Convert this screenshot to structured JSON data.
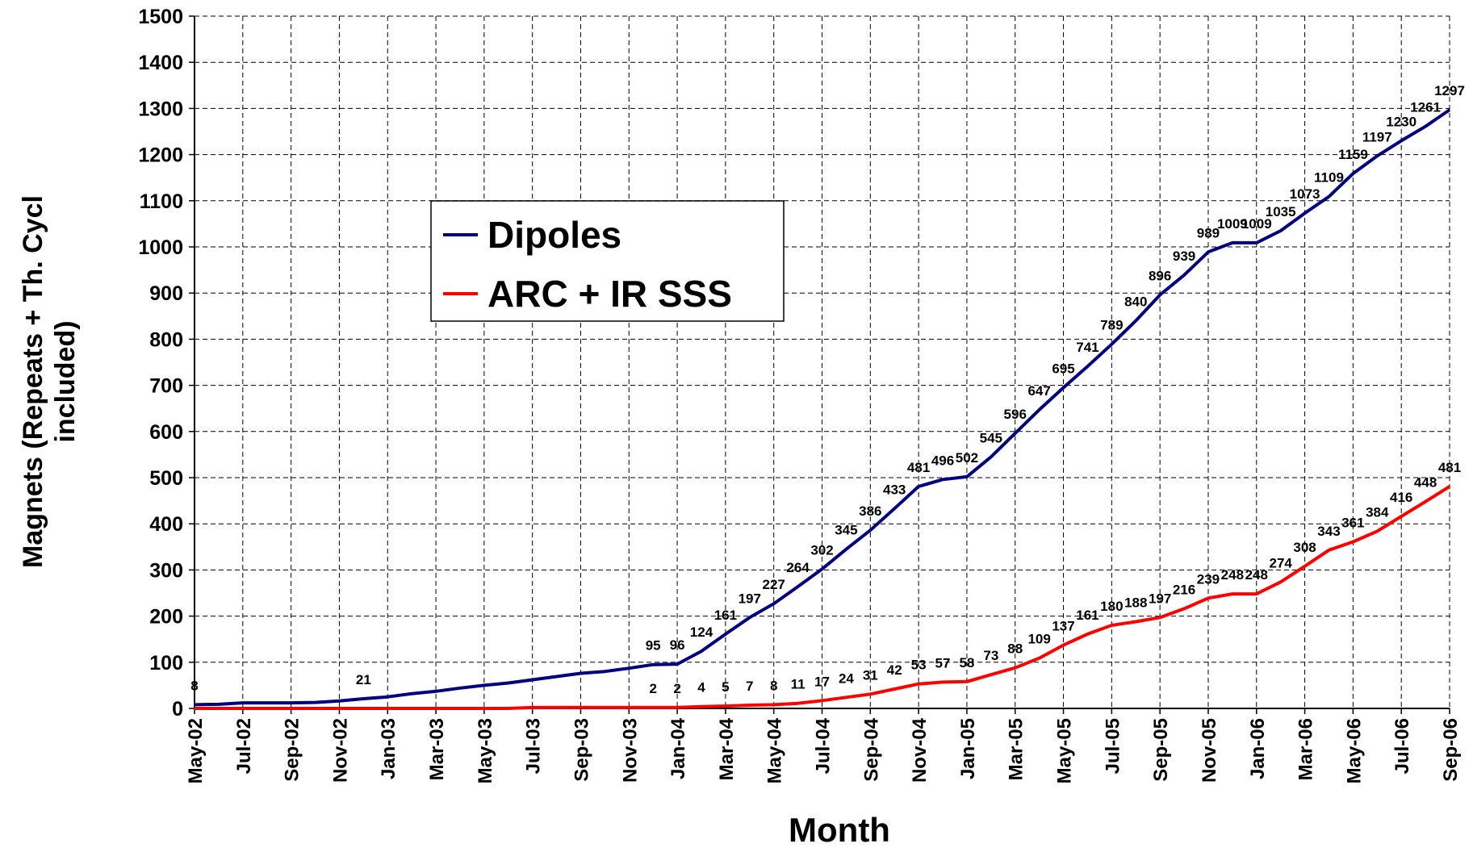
{
  "chart_data": {
    "type": "line",
    "xlabel": "Month",
    "ylabel": [
      "Magnets  (Repeats + Th. Cycl",
      "included)"
    ],
    "categories": [
      "May-02",
      null,
      "Jul-02",
      null,
      "Sep-02",
      null,
      "Nov-02",
      null,
      "Jan-03",
      null,
      "Mar-03",
      null,
      "May-03",
      null,
      "Jul-03",
      null,
      "Sep-03",
      null,
      "Nov-03",
      null,
      "Jan-04",
      null,
      "Mar-04",
      null,
      "May-04",
      null,
      "Jul-04",
      null,
      "Sep-04",
      null,
      "Nov-04",
      null,
      "Jan-05",
      null,
      "Mar-05",
      null,
      "May-05",
      null,
      "Jul-05",
      null,
      "Sep-05",
      null,
      "Nov-05",
      null,
      "Jan-06",
      null,
      "Mar-06",
      null,
      "May-06",
      null,
      "Jul-06",
      null,
      "Sep-06"
    ],
    "series": [
      {
        "name": "Dipoles",
        "color": "#000080",
        "values": [
          8,
          9,
          12,
          12,
          12,
          13,
          16,
          21,
          25,
          32,
          37,
          44,
          50,
          55,
          62,
          69,
          76,
          80,
          87,
          95,
          96,
          124,
          161,
          197,
          227,
          264,
          302,
          345,
          386,
          433,
          481,
          496,
          502,
          545,
          596,
          647,
          695,
          741,
          789,
          840,
          896,
          939,
          989,
          1009,
          1009,
          1035,
          1073,
          1109,
          1159,
          1197,
          1230,
          1261,
          1297
        ],
        "value_labels": [
          "8",
          null,
          null,
          null,
          null,
          null,
          null,
          "21",
          null,
          null,
          null,
          null,
          null,
          null,
          null,
          null,
          null,
          null,
          null,
          "95",
          "96",
          "124",
          "161",
          "197",
          "227",
          "264",
          "302",
          "345",
          "386",
          "433",
          "481",
          "496",
          "502",
          "545",
          "596",
          "647",
          "695",
          "741",
          "789",
          "840",
          "896",
          "939",
          "989",
          "1009",
          "1009",
          "1035",
          "1073",
          "1109",
          "1159",
          "1197",
          "1230",
          "1261",
          "1297"
        ]
      },
      {
        "name": "ARC + IR SSS",
        "color": "#ff0000",
        "values": [
          0,
          0,
          0,
          0,
          0,
          0,
          0,
          0,
          0,
          0,
          0,
          0,
          0,
          0,
          2,
          2,
          2,
          2,
          2,
          2,
          2,
          4,
          5,
          7,
          8,
          11,
          17,
          24,
          31,
          42,
          53,
          57,
          58,
          73,
          88,
          109,
          137,
          161,
          180,
          188,
          197,
          216,
          239,
          248,
          248,
          274,
          308,
          343,
          361,
          384,
          416,
          448,
          481
        ],
        "value_labels": [
          null,
          null,
          null,
          null,
          null,
          null,
          null,
          null,
          null,
          null,
          null,
          null,
          null,
          null,
          null,
          null,
          null,
          null,
          null,
          "2",
          "2",
          "4",
          "5",
          "7",
          "8",
          "11",
          "17",
          "24",
          "31",
          "42",
          "53",
          "57",
          "58",
          "73",
          "88",
          "109",
          "137",
          "161",
          "180",
          "188",
          "197",
          "216",
          "239",
          "248",
          "248",
          "274",
          "308",
          "343",
          "361",
          "384",
          "416",
          "448",
          "481"
        ]
      }
    ],
    "ylim": [
      0,
      1500
    ],
    "yticks": [
      0,
      100,
      200,
      300,
      400,
      500,
      600,
      700,
      800,
      900,
      1000,
      1100,
      1200,
      1300,
      1400,
      1500
    ],
    "grid": true,
    "legend": "upper left"
  }
}
